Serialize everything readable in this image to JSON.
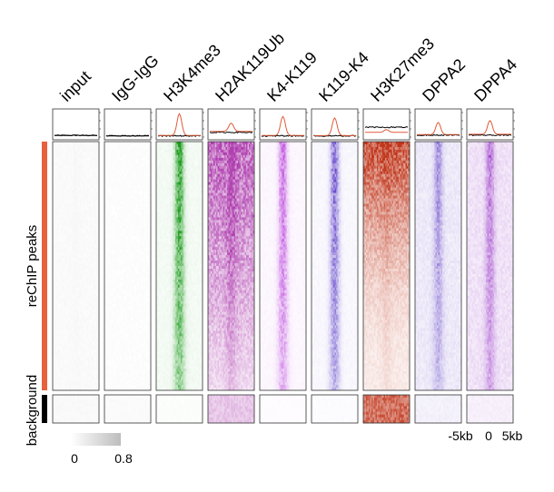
{
  "chart_data": {
    "type": "heatmap",
    "title": "",
    "columns": [
      {
        "name": "input",
        "color": "#9a9a9a",
        "profile_color": "#000000",
        "peak_enrichment": 0.05,
        "center_enrichment": 0.02,
        "background_enrichment": 0.06
      },
      {
        "name": "IgG-IgG",
        "color": "#707070",
        "profile_color": "#000000",
        "peak_enrichment": 0.02,
        "center_enrichment": 0.0,
        "background_enrichment": 0.03
      },
      {
        "name": "H3K4me3",
        "color": "#1a9a1a",
        "profile_color": "#e05a3a",
        "peak_enrichment": 0.05,
        "center_enrichment": 0.8,
        "background_enrichment": 0.02
      },
      {
        "name": "H2AK119Ub",
        "color": "#b040b0",
        "profile_color": "#e05a3a",
        "peak_enrichment": 0.38,
        "center_enrichment": 0.3,
        "background_enrichment": 0.3
      },
      {
        "name": "K4-K119",
        "color": "#c050e0",
        "profile_color": "#e05a3a",
        "peak_enrichment": 0.05,
        "center_enrichment": 0.7,
        "background_enrichment": 0.02
      },
      {
        "name": "K119-K4",
        "color": "#5a3ac8",
        "profile_color": "#e05a3a",
        "peak_enrichment": 0.04,
        "center_enrichment": 0.65,
        "background_enrichment": 0.02
      },
      {
        "name": "H3K27me3",
        "color": "#c0351a",
        "profile_color": "#e05a3a",
        "peak_enrichment": 0.3,
        "center_enrichment": 0.1,
        "background_enrichment": 0.7
      },
      {
        "name": "DPPA2",
        "color": "#6a4ac8",
        "profile_color": "#e05a3a",
        "peak_enrichment": 0.12,
        "center_enrichment": 0.45,
        "background_enrichment": 0.08
      },
      {
        "name": "DPPA4",
        "color": "#9a3ac8",
        "profile_color": "#e05a3a",
        "peak_enrichment": 0.15,
        "center_enrichment": 0.5,
        "background_enrichment": 0.08
      }
    ],
    "row_groups": [
      {
        "name": "reChIP peaks",
        "color": "#e8603c"
      },
      {
        "name": "background",
        "color": "#000000"
      }
    ],
    "x_axis": {
      "ticks": [
        "-5kb",
        "0",
        "5kb"
      ],
      "range_kb": [
        -5,
        5
      ]
    },
    "colorbar": {
      "min_label": "0",
      "max_label": "0.8",
      "min": 0,
      "max": 0.8
    }
  }
}
